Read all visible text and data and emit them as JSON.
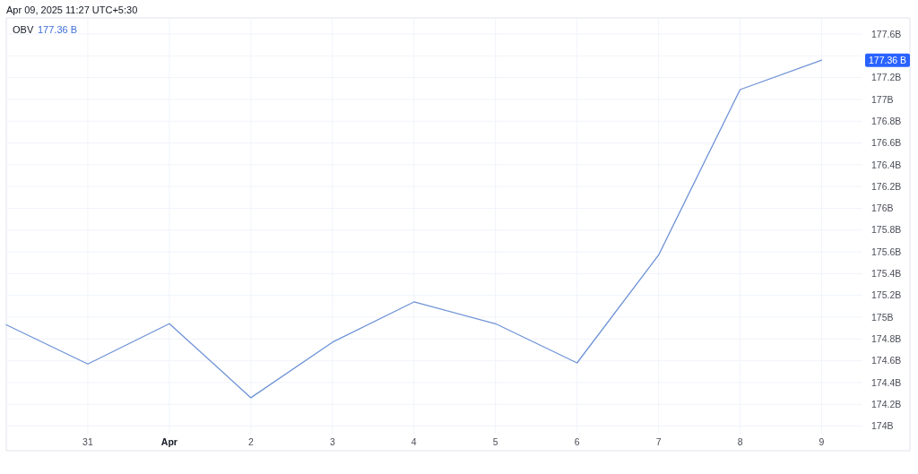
{
  "chart_data": {
    "type": "line",
    "annotations": [
      "Apr 09, 2025 11:27 UTC+5:30",
      "177.36 B",
      "177.36 B"
    ],
    "x": [
      "2025-03-30",
      "2025-03-31",
      "2025-04-01",
      "2025-04-02",
      "2025-04-03",
      "2025-04-04",
      "2025-04-05",
      "2025-04-06",
      "2025-04-07",
      "2025-04-08",
      "2025-04-09"
    ],
    "series": [
      {
        "name": "OBV",
        "color": "#6f93d6",
        "values": [
          174.93,
          174.57,
          174.94,
          174.26,
          174.77,
          175.14,
          174.94,
          174.58,
          175.57,
          177.09,
          177.36
        ]
      }
    ],
    "xlim": [
      "2025-03-30",
      "2025-04-09T12:00"
    ],
    "xticks": [
      {
        "value": "2025-03-31",
        "label": "31"
      },
      {
        "value": "2025-04-01",
        "label": "Apr"
      },
      {
        "value": "2025-04-02",
        "label": "2"
      },
      {
        "value": "2025-04-03",
        "label": "3"
      },
      {
        "value": "2025-04-04",
        "label": "4"
      },
      {
        "value": "2025-04-05",
        "label": "5"
      },
      {
        "value": "2025-04-06",
        "label": "6"
      },
      {
        "value": "2025-04-07",
        "label": "7"
      },
      {
        "value": "2025-04-08",
        "label": "8"
      },
      {
        "value": "2025-04-09",
        "label": "9"
      }
    ],
    "ylim": [
      173.93,
      177.74
    ],
    "yticks": [
      {
        "value": 174,
        "label": "174B"
      },
      {
        "value": 174.2,
        "label": "174.2B"
      },
      {
        "value": 174.4,
        "label": "174.4B"
      },
      {
        "value": 174.6,
        "label": "174.6B"
      },
      {
        "value": 174.8,
        "label": "174.8B"
      },
      {
        "value": 175,
        "label": "175B"
      },
      {
        "value": 175.2,
        "label": "175.2B"
      },
      {
        "value": 175.4,
        "label": "175.4B"
      },
      {
        "value": 175.6,
        "label": "175.6B"
      },
      {
        "value": 175.8,
        "label": "175.8B"
      },
      {
        "value": 176,
        "label": "176B"
      },
      {
        "value": 176.2,
        "label": "176.2B"
      },
      {
        "value": 176.4,
        "label": "176.4B"
      },
      {
        "value": 176.6,
        "label": "176.6B"
      },
      {
        "value": 176.8,
        "label": "176.8B"
      },
      {
        "value": 177,
        "label": "177B"
      },
      {
        "value": 177.2,
        "label": "177.2B"
      },
      {
        "value": 177.4,
        "label": null
      },
      {
        "value": 177.6,
        "label": "177.6B"
      }
    ],
    "grid": true,
    "legend": "top left"
  }
}
